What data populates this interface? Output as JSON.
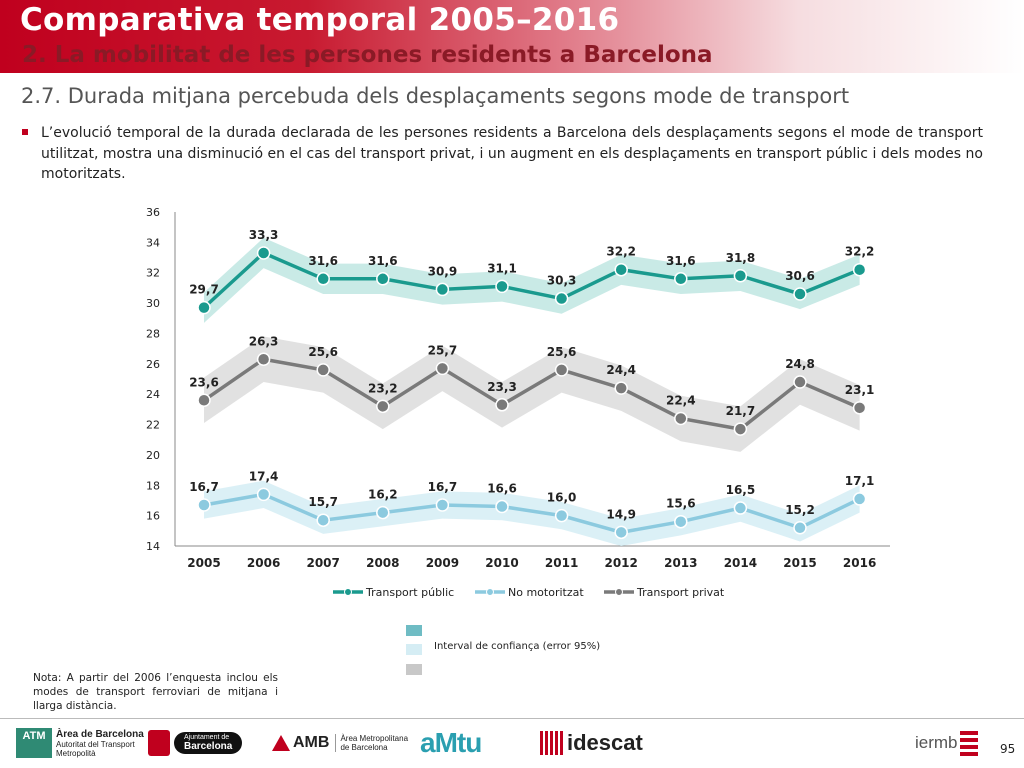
{
  "header": {
    "title": "Comparativa temporal 2005–2016",
    "subtitle": "2. La mobilitat de les persones residents a Barcelona"
  },
  "section_title": "2.7. Durada mitjana percebuda dels desplaçaments segons mode de transport",
  "bullet_text": "L’evolució temporal de la durada declarada de les persones residents a Barcelona dels desplaçaments segons el mode de transport utilitzat, mostra una disminució en el cas del transport privat, i un augment en els desplaçaments en transport públic i dels modes no motoritzats.",
  "chart_data": {
    "type": "line",
    "x": [
      "2005",
      "2006",
      "2007",
      "2008",
      "2009",
      "2010",
      "2011",
      "2012",
      "2013",
      "2014",
      "2015",
      "2016"
    ],
    "ylim": [
      14,
      36
    ],
    "yticks": [
      14,
      16,
      18,
      20,
      22,
      24,
      26,
      28,
      30,
      32,
      34,
      36
    ],
    "grid": false,
    "legend_position": "bottom",
    "series": [
      {
        "name": "Transport públic",
        "color": "#1a9a8e",
        "band_color": "#bfe6e2",
        "values": [
          29.7,
          33.3,
          31.6,
          31.6,
          30.9,
          31.1,
          30.3,
          32.2,
          31.6,
          31.8,
          30.6,
          32.2
        ],
        "labels": [
          "29,7",
          "33,3",
          "31,6",
          "31,6",
          "30,9",
          "31,1",
          "30,3",
          "32,2",
          "31,6",
          "31,8",
          "30,6",
          "32,2"
        ]
      },
      {
        "name": "No motoritzat",
        "color": "#8ccadf",
        "band_color": "#d5edf4",
        "values": [
          16.7,
          17.4,
          15.7,
          16.2,
          16.7,
          16.6,
          16.0,
          14.9,
          15.6,
          16.5,
          15.2,
          17.1
        ],
        "labels": [
          "16,7",
          "17,4",
          "15,7",
          "16,2",
          "16,7",
          "16,6",
          "16,0",
          "14,9",
          "15,6",
          "16,5",
          "15,2",
          "17,1"
        ]
      },
      {
        "name": "Transport privat",
        "color": "#7a7a7a",
        "band_color": "#dcdcdc",
        "values": [
          23.6,
          26.3,
          25.6,
          23.2,
          25.7,
          23.3,
          25.6,
          24.4,
          22.4,
          21.7,
          24.8,
          23.1
        ],
        "labels": [
          "23,6",
          "26,3",
          "25,6",
          "23,2",
          "25,7",
          "23,3",
          "25,6",
          "24,4",
          "22,4",
          "21,7",
          "24,8",
          "23,1"
        ]
      }
    ]
  },
  "ci_legend": {
    "label": "Interval de confiança (error 95%)",
    "colors": [
      "#6fbcc4",
      "#d5edf4",
      "#c8c8c8"
    ]
  },
  "note": "Nota: A partir del 2006 l’enquesta inclou els modes de transport ferroviari de mitjana i llarga distància.",
  "footer": {
    "logo_atm": "ATM",
    "logo_atm_title": "Àrea de Barcelona",
    "logo_atm_sub1": "Autoritat del Transport",
    "logo_atm_sub2": "Metropolità",
    "logo_ajuntament_1": "Ajuntament de",
    "logo_ajuntament_2": "Barcelona",
    "logo_amb": "AMB",
    "logo_amb_sub1": "Àrea Metropolitana",
    "logo_amb_sub2": "de Barcelona",
    "logo_amtu": "aMtu",
    "logo_idescat": "idescat",
    "logo_iermb": "iermb",
    "page_number": "95"
  }
}
